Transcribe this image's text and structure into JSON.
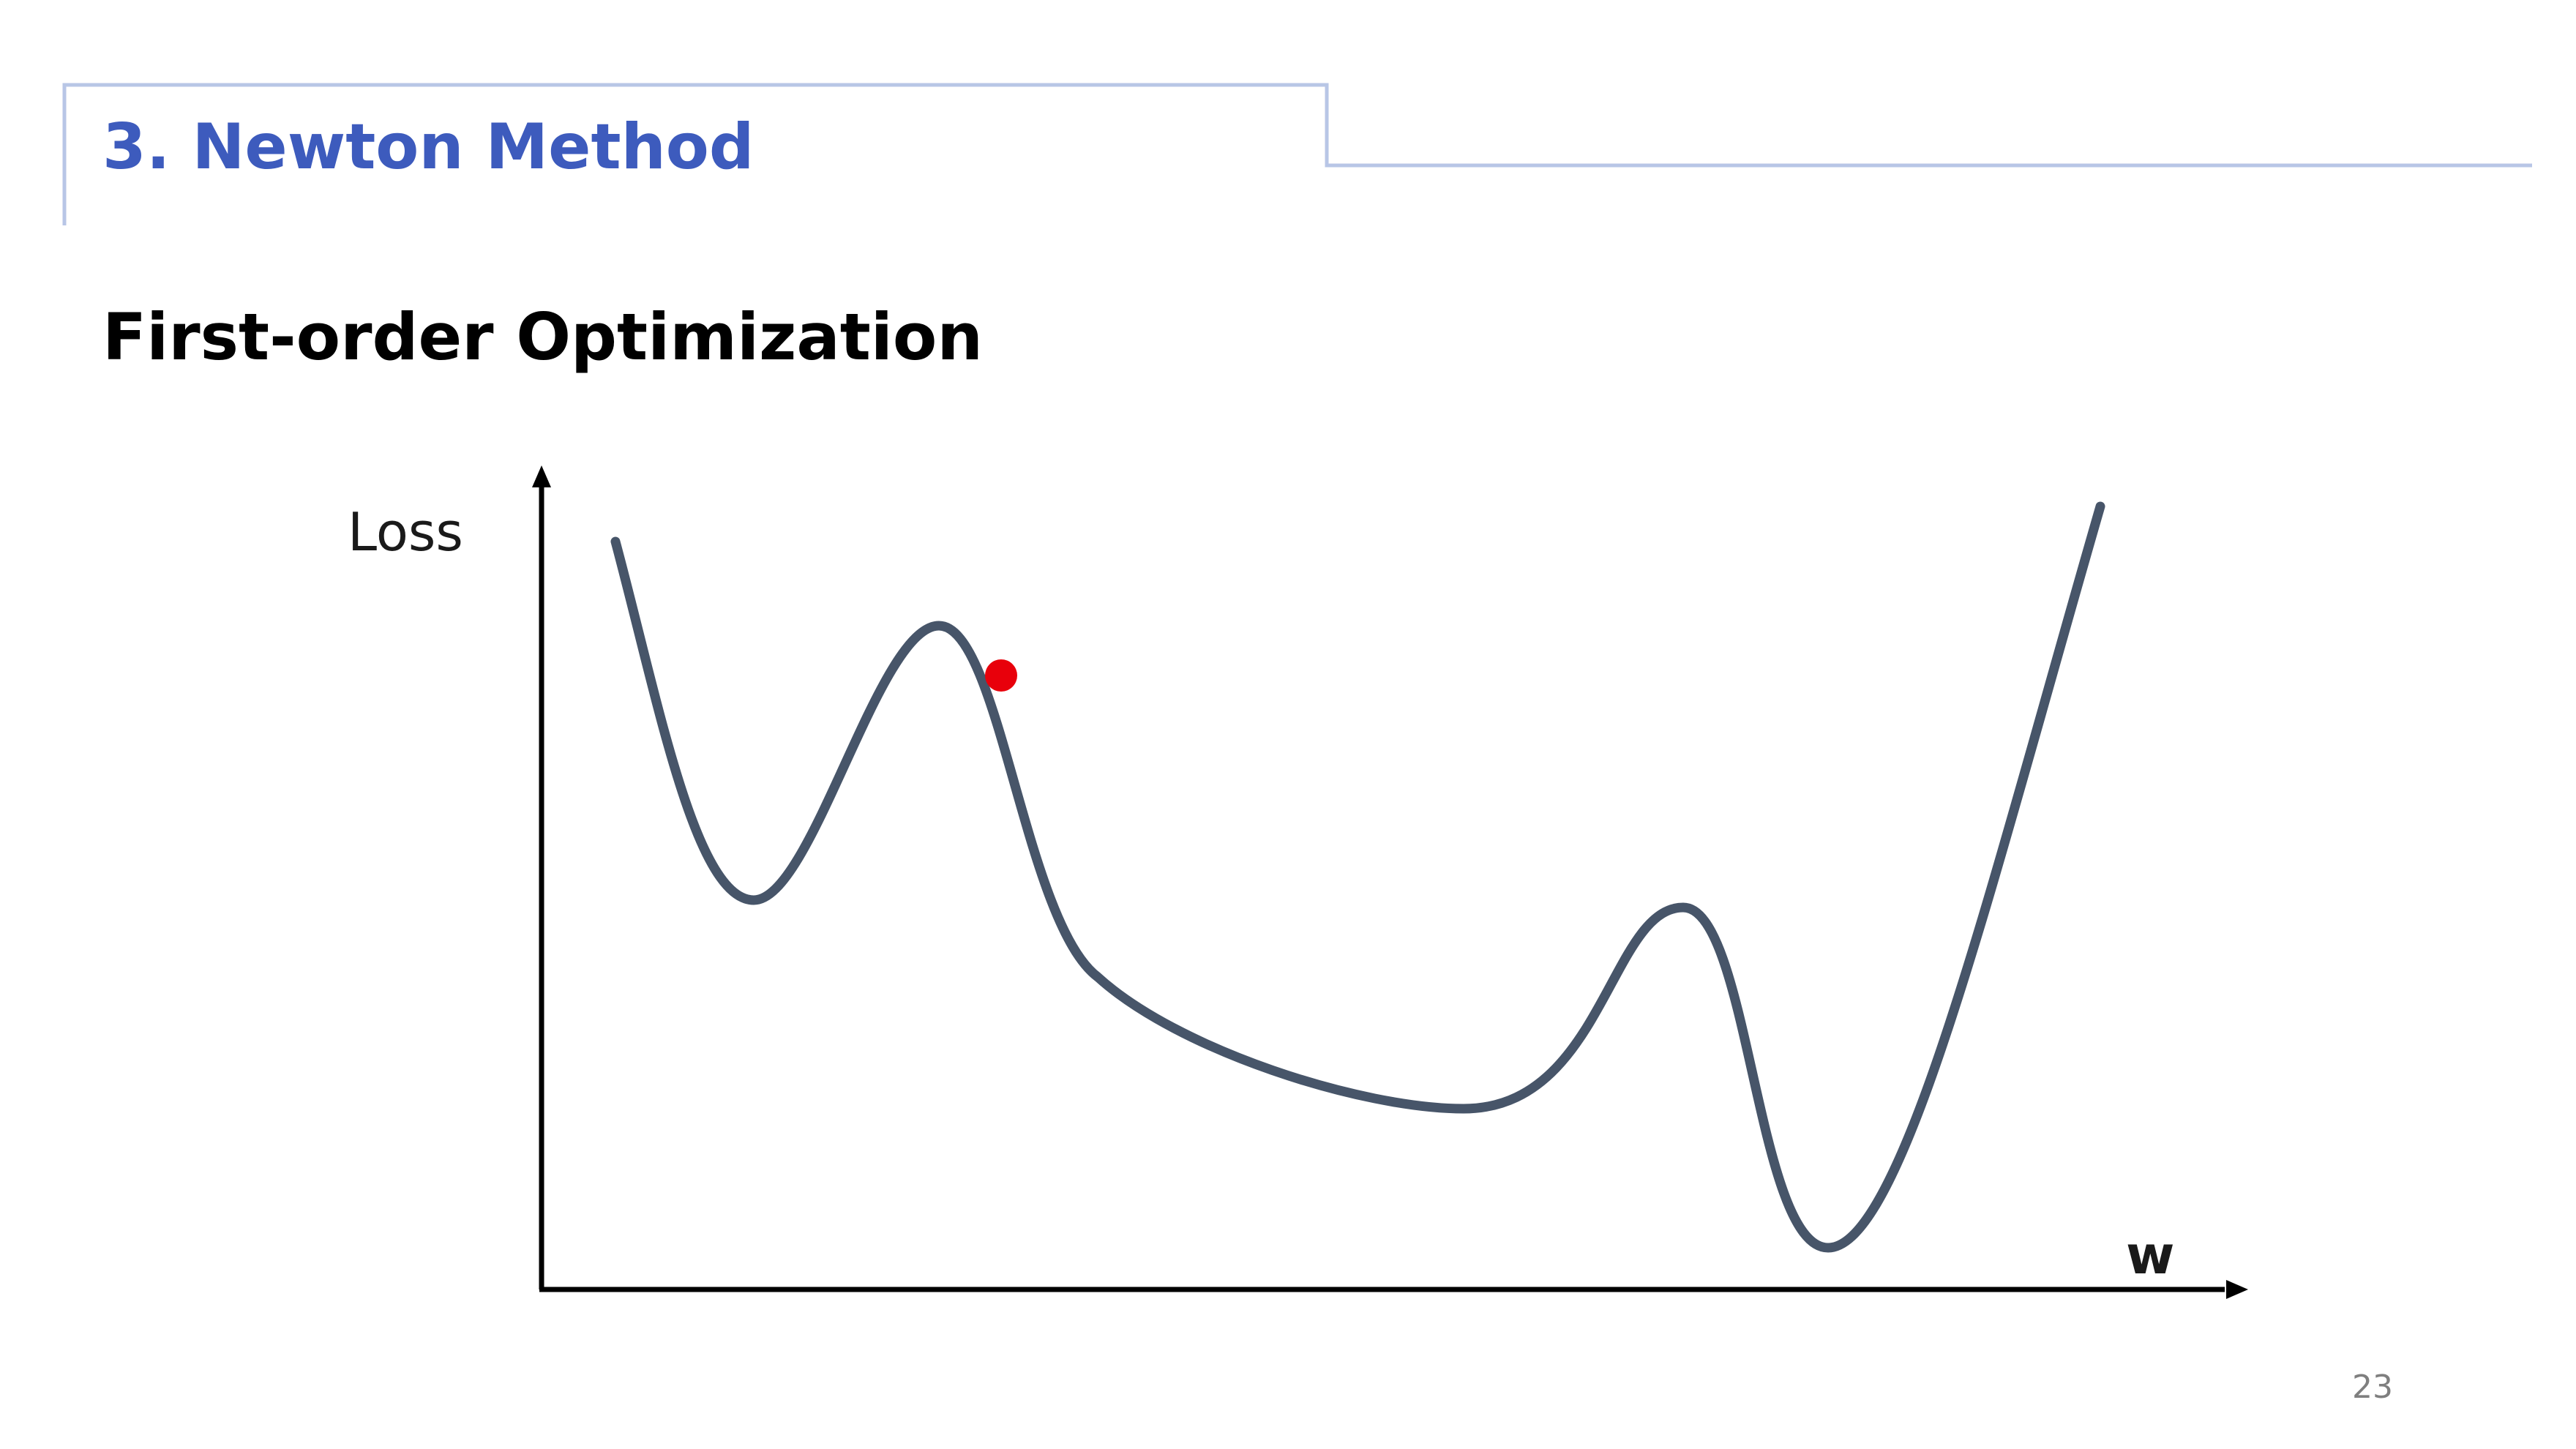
{
  "slide": {
    "section_title": "3. Newton Method",
    "subtitle": "First-order Optimization",
    "page_number": "23"
  },
  "figure": {
    "y_axis_label": "Loss",
    "x_axis_label": "w",
    "curve_color": "#475569",
    "point_color": "#e8000b",
    "header_line_color": "#b8c6e6"
  }
}
